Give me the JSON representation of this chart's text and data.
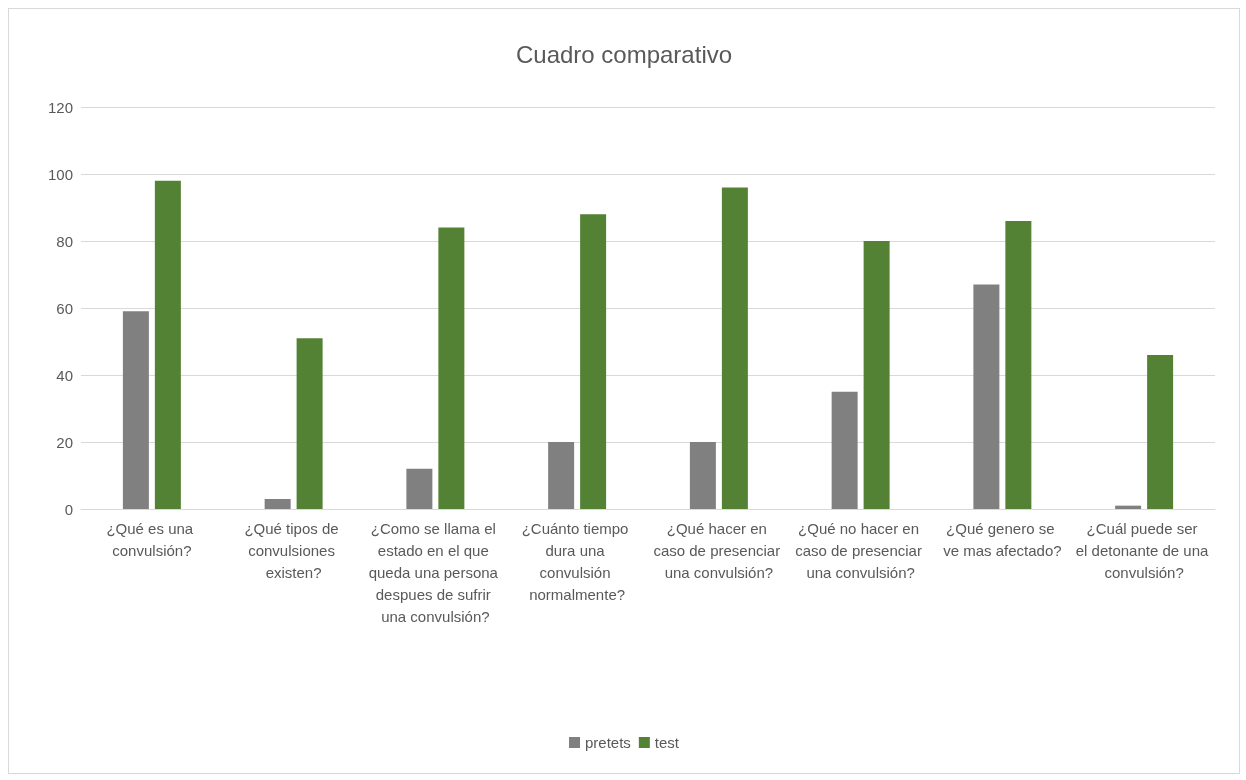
{
  "chart_data": {
    "type": "bar",
    "title": "Cuadro comparativo",
    "categories": [
      "¿Qué es una convulsión?",
      "¿Qué tipos de convulsiones existen?",
      "¿Como se llama el estado en el que queda una persona despues de sufrir una convulsión?",
      "¿Cuánto tiempo dura una convulsión normalmente?",
      "¿Qué hacer en caso de presenciar una convulsión?",
      "¿Qué no hacer en caso de presenciar una convulsión?",
      "¿Qué genero se ve mas afectado?",
      "¿Cuál puede ser el detonante de una convulsión?"
    ],
    "series": [
      {
        "name": "pretets",
        "color": "#808080",
        "values": [
          59,
          3,
          12,
          20,
          20,
          35,
          67,
          1
        ]
      },
      {
        "name": "test",
        "color": "#548235",
        "values": [
          98,
          51,
          84,
          88,
          96,
          80,
          86,
          46
        ]
      }
    ],
    "ylim": [
      0,
      120
    ],
    "yticks": [
      0,
      20,
      40,
      60,
      80,
      100,
      120
    ],
    "grid": "y",
    "legend": "bottom"
  }
}
